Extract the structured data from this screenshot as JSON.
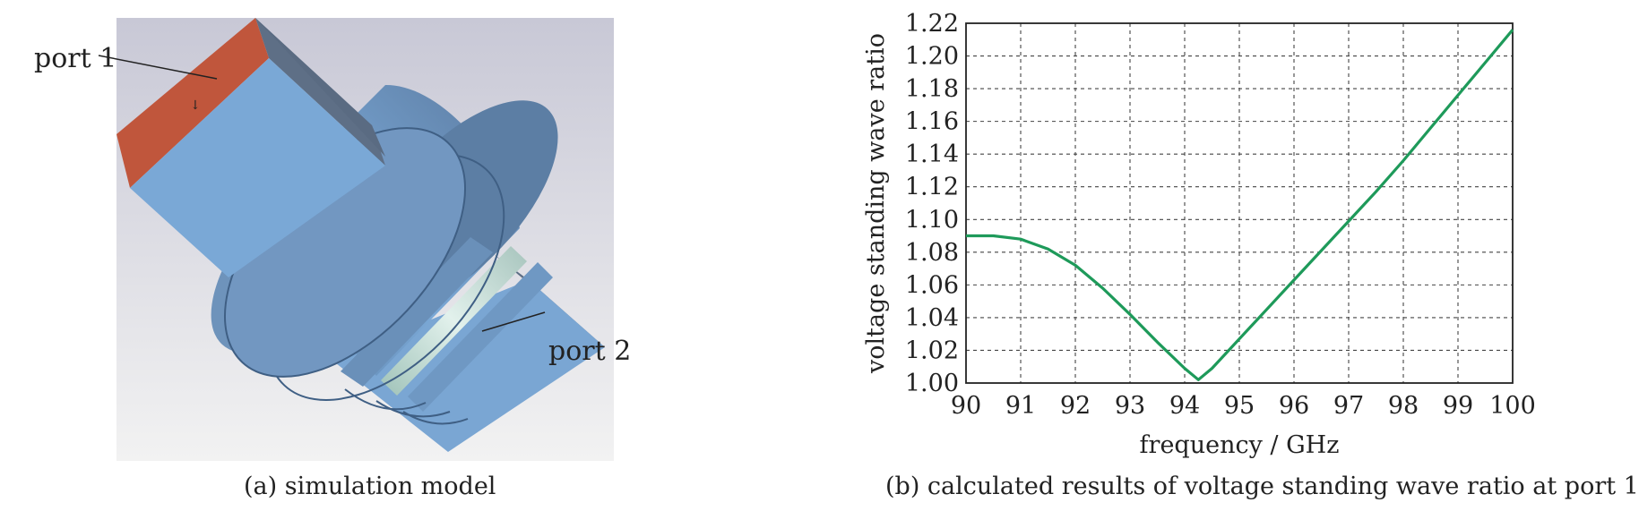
{
  "panel_a": {
    "caption": "(a) simulation model",
    "port1_label": "port 1",
    "port2_label": "port 2",
    "colors": {
      "background_top": "#c9c9d6",
      "background_bottom": "#f1f1f1",
      "port_face": "#c0563c",
      "waveguide": "#7aa8d6",
      "ring": "#d7ece6"
    }
  },
  "panel_b": {
    "caption": "(b) calculated results of voltage standing wave ratio at port 1"
  },
  "chart_data": {
    "type": "line",
    "title": "",
    "xlabel": "frequency / GHz",
    "ylabel": "voltage standing wave ratio",
    "xlim": [
      90,
      100
    ],
    "ylim": [
      1.0,
      1.22
    ],
    "x_ticks": [
      "90",
      "91",
      "92",
      "93",
      "94",
      "95",
      "96",
      "97",
      "98",
      "99",
      "100"
    ],
    "y_ticks": [
      "1.00",
      "1.02",
      "1.04",
      "1.06",
      "1.08",
      "1.10",
      "1.12",
      "1.14",
      "1.16",
      "1.18",
      "1.20",
      "1.22"
    ],
    "grid": true,
    "line_color": "#1e9a5a",
    "series": [
      {
        "x": [
          90,
          90.5,
          91,
          91.5,
          92,
          92.5,
          93,
          93.5,
          94,
          94.25,
          94.5,
          95,
          95.5,
          96,
          96.5,
          97,
          97.5,
          98,
          98.5,
          99,
          99.5,
          100
        ],
        "values": [
          1.09,
          1.09,
          1.088,
          1.082,
          1.072,
          1.058,
          1.042,
          1.025,
          1.009,
          1.002,
          1.009,
          1.027,
          1.045,
          1.063,
          1.081,
          1.099,
          1.117,
          1.136,
          1.156,
          1.176,
          1.196,
          1.216
        ]
      }
    ]
  }
}
